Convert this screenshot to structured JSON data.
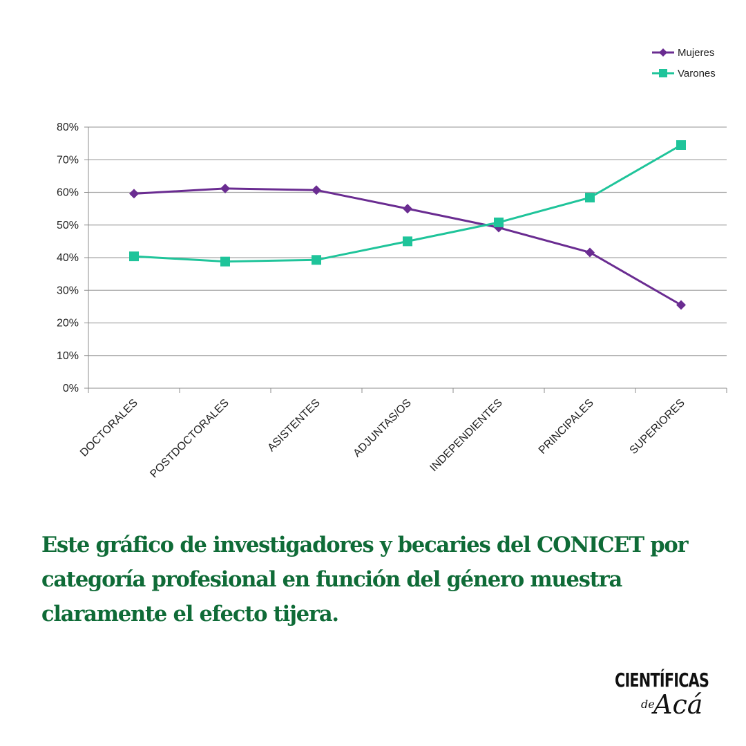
{
  "chart_data": {
    "type": "line",
    "categories": [
      "DOCTORALES",
      "POSTDOCTORALES",
      "ASISTENTES",
      "ADJUNTAS/OS",
      "INDEPENDIENTES",
      "PRINCIPALES",
      "SUPERIORES"
    ],
    "series": [
      {
        "name": "Mujeres",
        "color": "#6a2c91",
        "marker": "diamond",
        "values": [
          59.6,
          61.2,
          60.7,
          55.0,
          49.2,
          41.6,
          25.5
        ]
      },
      {
        "name": "Varones",
        "color": "#1fc49a",
        "marker": "square",
        "values": [
          40.4,
          38.8,
          39.3,
          45.0,
          50.8,
          58.4,
          74.5
        ]
      }
    ],
    "ylim": [
      0,
      80
    ],
    "yticks": [
      "0%",
      "10%",
      "20%",
      "30%",
      "40%",
      "50%",
      "60%",
      "70%",
      "80%"
    ],
    "title": "",
    "xlabel": "",
    "ylabel": "",
    "legend": "top-right",
    "grid": true
  },
  "caption": "Este gráfico de investigadores y becaries del CONICET por categoría profesional en función del género muestra claramente el efecto tijera.",
  "logo": {
    "top": "CIENTÍFICAS",
    "de": "de",
    "aca": "Acá"
  }
}
